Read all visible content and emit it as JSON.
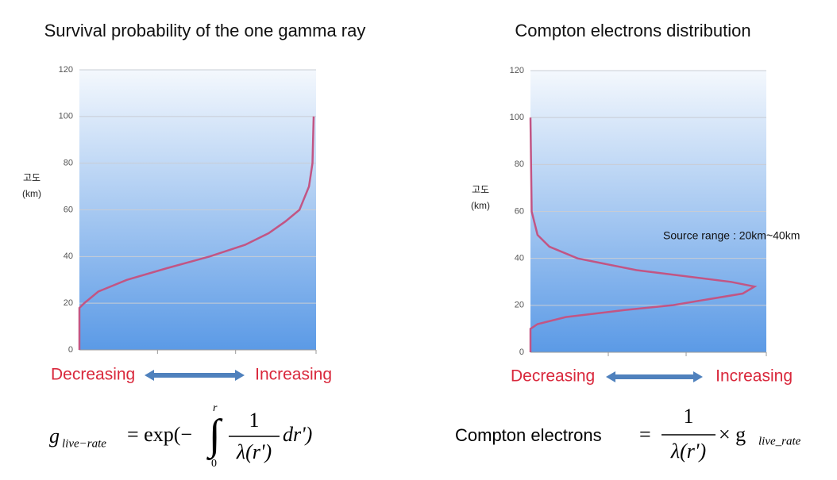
{
  "chart_data": [
    {
      "type": "line",
      "title": "Survival probability of the one gamma ray",
      "ylabel": [
        "고도",
        "(km)"
      ],
      "x_left": "Decreasing",
      "x_right": "Increasing",
      "xlim": [
        0,
        1
      ],
      "ylim": [
        0,
        120
      ],
      "yticks": [
        0,
        20,
        40,
        60,
        80,
        100,
        120
      ],
      "grid": true,
      "series": [
        {
          "color": "#c25584",
          "x": [
            0,
            0,
            0.02,
            0.08,
            0.2,
            0.37,
            0.55,
            0.7,
            0.8,
            0.87,
            0.93,
            0.97,
            0.985,
            0.99
          ],
          "values": [
            0,
            18,
            20,
            25,
            30,
            35,
            40,
            45,
            50,
            55,
            60,
            70,
            80,
            100
          ]
        }
      ]
    },
    {
      "type": "line",
      "title": "Compton electrons distribution",
      "ylabel": [
        "고도",
        "(km)"
      ],
      "x_left": "Decreasing",
      "x_right": "Increasing",
      "annotation": "Source range :  20km~40km",
      "xlim": [
        0,
        1
      ],
      "ylim": [
        0,
        120
      ],
      "yticks": [
        0,
        20,
        40,
        60,
        80,
        100,
        120
      ],
      "grid": true,
      "series": [
        {
          "color": "#c25584",
          "x": [
            0,
            0,
            0.03,
            0.15,
            0.4,
            0.6,
            0.9,
            0.95,
            0.85,
            0.45,
            0.2,
            0.08,
            0.03,
            0.005,
            0
          ],
          "values": [
            0,
            10,
            12,
            15,
            18,
            20,
            25,
            28,
            30,
            35,
            40,
            45,
            50,
            60,
            100
          ]
        }
      ]
    }
  ],
  "formulas": {
    "left": {
      "g": "g",
      "sub": "live−rate",
      "eq": "= exp(−",
      "upper": "r",
      "lower": "0",
      "num": "1",
      "den": "λ(r')",
      "tail": "dr')"
    },
    "right": {
      "lead": "Compton electrons",
      "eq": "=",
      "num": "1",
      "den": "λ(r')",
      "times": "× g",
      "sub": "live_rate"
    }
  }
}
